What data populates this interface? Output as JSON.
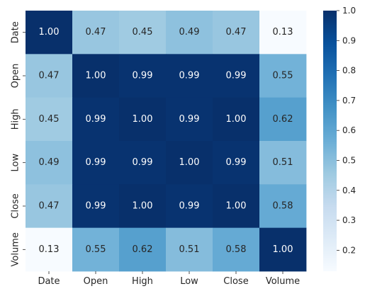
{
  "chart_data": {
    "type": "heatmap",
    "title": "",
    "xlabel": "",
    "ylabel": "",
    "x_labels": [
      "Date",
      "Open",
      "High",
      "Low",
      "Close",
      "Volume"
    ],
    "y_labels": [
      "Date",
      "Open",
      "High",
      "Low",
      "Close",
      "Volume"
    ],
    "values": [
      [
        1.0,
        0.47,
        0.45,
        0.49,
        0.47,
        0.13
      ],
      [
        0.47,
        1.0,
        0.99,
        0.99,
        0.99,
        0.55
      ],
      [
        0.45,
        0.99,
        1.0,
        0.99,
        1.0,
        0.62
      ],
      [
        0.49,
        0.99,
        0.99,
        1.0,
        0.99,
        0.51
      ],
      [
        0.47,
        0.99,
        1.0,
        0.99,
        1.0,
        0.58
      ],
      [
        0.13,
        0.55,
        0.62,
        0.51,
        0.58,
        1.0
      ]
    ],
    "annotations": [
      [
        "1.00",
        "0.47",
        "0.45",
        "0.49",
        "0.47",
        "0.13"
      ],
      [
        "0.47",
        "1.00",
        "0.99",
        "0.99",
        "0.99",
        "0.55"
      ],
      [
        "0.45",
        "0.99",
        "1.00",
        "0.99",
        "1.00",
        "0.62"
      ],
      [
        "0.49",
        "0.99",
        "0.99",
        "1.00",
        "0.99",
        "0.51"
      ],
      [
        "0.47",
        "0.99",
        "1.00",
        "0.99",
        "1.00",
        "0.58"
      ],
      [
        "0.13",
        "0.55",
        "0.62",
        "0.51",
        "0.58",
        "1.00"
      ]
    ],
    "vmin": 0.13,
    "vmax": 1.0,
    "colormap": "Blues",
    "colormap_stops": [
      "#f7fbff",
      "#deebf7",
      "#c6dbef",
      "#9ecae1",
      "#6baed6",
      "#4292c6",
      "#2171b5",
      "#08519c",
      "#08306b"
    ],
    "colorbar_ticks": [
      "0.2",
      "0.3",
      "0.4",
      "0.5",
      "0.6",
      "0.7",
      "0.8",
      "0.9",
      "1.0"
    ],
    "colorbar_tick_values": [
      0.2,
      0.3,
      0.4,
      0.5,
      0.6,
      0.7,
      0.8,
      0.9,
      1.0
    ],
    "grid": false
  }
}
